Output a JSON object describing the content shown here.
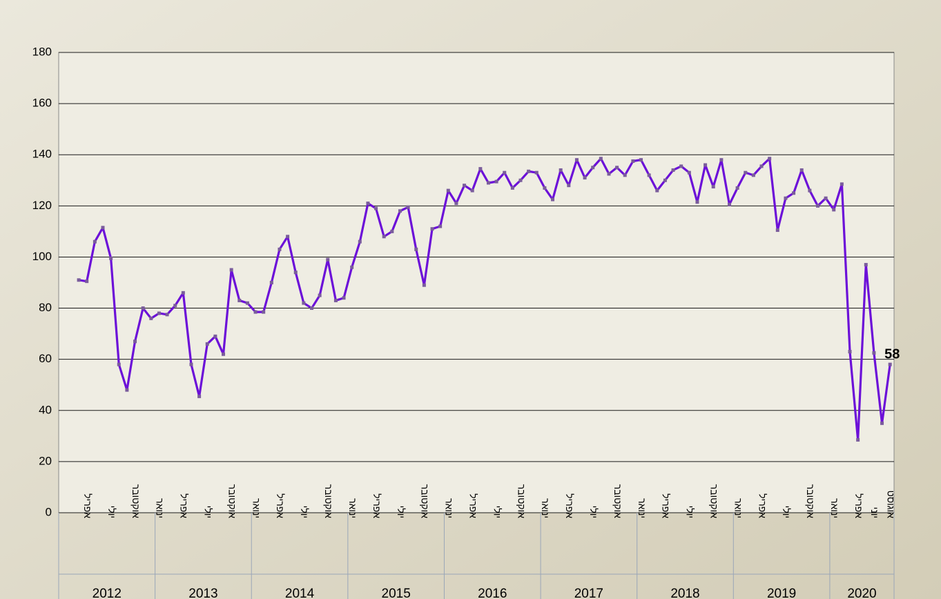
{
  "chart_data": {
    "type": "line",
    "categories": [
      null,
      null,
      null,
      "אפריל",
      null,
      null,
      "יולי",
      null,
      null,
      "אוקטובר",
      null,
      null,
      "ינואר",
      null,
      null,
      "אפריל",
      null,
      null,
      "יולי",
      null,
      null,
      "אוקטובר",
      null,
      null,
      "ינואר",
      null,
      null,
      "אפריל",
      null,
      null,
      "יולי",
      null,
      null,
      "אוקטובר",
      null,
      null,
      "ינואר",
      null,
      null,
      "אפריל",
      null,
      null,
      "יולי",
      null,
      null,
      "אוקטובר",
      null,
      null,
      "ינואר",
      null,
      null,
      "אפריל",
      null,
      null,
      "יולי",
      null,
      null,
      "אוקטובר",
      null,
      null,
      "ינואר",
      null,
      null,
      "אפריל",
      null,
      null,
      "יולי",
      null,
      null,
      "אוקטובר",
      null,
      null,
      "ינואר",
      null,
      null,
      "אפריל",
      null,
      null,
      "יולי",
      null,
      null,
      "אוקטובר",
      null,
      null,
      "ינואר",
      null,
      null,
      "אפריל",
      null,
      null,
      "יולי",
      null,
      null,
      "אוקטובר",
      null,
      null,
      "ינואר",
      null,
      null,
      "אפריל",
      null,
      "יוני",
      null,
      "אוגוסט"
    ],
    "year_groups": [
      {
        "label": "2012",
        "months": 12
      },
      {
        "label": "2013",
        "months": 12
      },
      {
        "label": "2014",
        "months": 12
      },
      {
        "label": "2015",
        "months": 12
      },
      {
        "label": "2016",
        "months": 12
      },
      {
        "label": "2017",
        "months": 12
      },
      {
        "label": "2018",
        "months": 12
      },
      {
        "label": "2019",
        "months": 12
      },
      {
        "label": "2020",
        "months": 8
      }
    ],
    "values": [
      null,
      null,
      91,
      90.5,
      106,
      111.5,
      99.5,
      58,
      48,
      67,
      80,
      76,
      78,
      77.5,
      81,
      86,
      58,
      45.5,
      66,
      69,
      62,
      95,
      83,
      82,
      78.5,
      78.5,
      90,
      103,
      108,
      94,
      82,
      80,
      85,
      99,
      83,
      84,
      96,
      106,
      121,
      119,
      108,
      110,
      118,
      119.5,
      103,
      89,
      111,
      112,
      126,
      121,
      128,
      126,
      134.5,
      129,
      129.5,
      133,
      127,
      130,
      133.5,
      133,
      127,
      122.5,
      134,
      128,
      138,
      131,
      135,
      138.5,
      132.5,
      135,
      132,
      137.5,
      138,
      132,
      126,
      130,
      134,
      135.5,
      133,
      121.5,
      136,
      127.5,
      138,
      120.5,
      127,
      133,
      132,
      135.5,
      138.5,
      110.5,
      123,
      125,
      134,
      126,
      120,
      123,
      118.5,
      128.5,
      63,
      28.5,
      97,
      62.5,
      35,
      58
    ],
    "value_labels": [
      null,
      null,
      null,
      null,
      null,
      null,
      null,
      null,
      null,
      null,
      null,
      null,
      null,
      null,
      null,
      null,
      null,
      null,
      null,
      null,
      null,
      null,
      null,
      null,
      null,
      null,
      null,
      null,
      null,
      null,
      null,
      null,
      null,
      null,
      null,
      null,
      null,
      null,
      null,
      null,
      null,
      null,
      null,
      null,
      null,
      null,
      null,
      null,
      null,
      null,
      null,
      null,
      null,
      null,
      null,
      null,
      null,
      null,
      null,
      null,
      null,
      null,
      null,
      null,
      null,
      null,
      null,
      null,
      null,
      null,
      null,
      null,
      null,
      null,
      null,
      null,
      null,
      null,
      null,
      null,
      null,
      null,
      null,
      null,
      null,
      null,
      null,
      null,
      null,
      null,
      null,
      null,
      null,
      null,
      null,
      null,
      null,
      null,
      null,
      null,
      null,
      null,
      null,
      "58"
    ],
    "color": "#6c10d8",
    "marker_color": "#7a5c9c",
    "ylim": [
      0,
      180
    ],
    "yticks": [
      0,
      20,
      40,
      60,
      80,
      100,
      120,
      140,
      160,
      180
    ],
    "grid": true
  }
}
